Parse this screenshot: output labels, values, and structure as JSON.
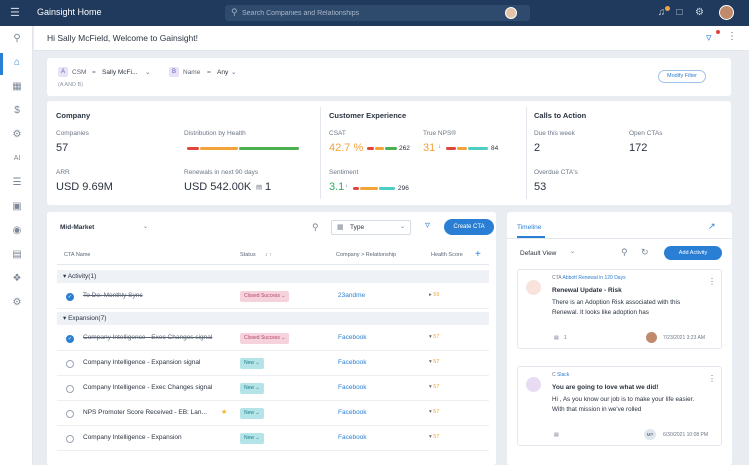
{
  "topbar": {
    "app_title": "Gainsight Home",
    "search_placeholder": "Search Companies and Relationships"
  },
  "welcome": {
    "text": "Hi Sally McField, Welcome to Gainsight!"
  },
  "filters": {
    "f1_letter": "A",
    "f1_field": "CSM",
    "f1_op": "=",
    "f1_value": "Sally McFi...",
    "f2_letter": "B",
    "f2_field": "Name",
    "f2_op": "=",
    "f2_value": "Any",
    "logic": "(A AND B)",
    "modify_label": "Modify Filter"
  },
  "company": {
    "title": "Company",
    "companies_label": "Companies",
    "companies_value": "57",
    "distribution_label": "Distribution by Health",
    "arr_label": "ARR",
    "arr_value": "USD 9.69M",
    "renewals_label": "Renewals in next 90 days",
    "renewals_value": "USD 542.00K",
    "renewals_count": "1"
  },
  "customer_experience": {
    "title": "Customer Experience",
    "csat_label": "CSAT",
    "csat_value": "42.7 %",
    "csat_count": "262",
    "nps_label": "True NPS®",
    "nps_value": "31",
    "nps_count": "84",
    "sentiment_label": "Sentiment",
    "sentiment_value": "3.1",
    "sentiment_count": "296"
  },
  "calls_to_action": {
    "title": "Calls to Action",
    "due_label": "Due this week",
    "due_value": "2",
    "open_label": "Open CTAs",
    "open_value": "172",
    "overdue_label": "Overdue CTA's",
    "overdue_value": "53"
  },
  "cta_list": {
    "segment": "Mid-Market",
    "type_label": "Type",
    "create_label": "Create CTA",
    "columns": [
      "CTA Name",
      "Status",
      "Company > Relationship",
      "Health Score"
    ],
    "groups": [
      {
        "label": "Activity(1)",
        "rows": [
          {
            "name": "To Do: Monthly Sync",
            "status": "Closed Success",
            "company": "23andme",
            "done": true
          }
        ]
      },
      {
        "label": "Expansion(7)",
        "rows": [
          {
            "name": "Company Intelligence - Exec Changes signal",
            "status": "Closed Success",
            "company": "Facebook",
            "done": true
          },
          {
            "name": "Company Intelligence - Expansion signal",
            "status": "New",
            "company": "Facebook",
            "done": false
          },
          {
            "name": "Company Intelligence - Exec Changes signal",
            "status": "New",
            "company": "Facebook",
            "done": false
          },
          {
            "name": "NPS Promoter Score Received - EB: Lan...",
            "status": "New",
            "company": "Facebook",
            "done": false
          },
          {
            "name": "Company Intelligence - Expansion",
            "status": "New",
            "company": "Facebook",
            "done": false
          }
        ]
      }
    ],
    "health_scores": [
      "59",
      "57",
      "57",
      "57",
      "57",
      "57"
    ]
  },
  "timeline": {
    "tab": "Timeline",
    "view": "Default View",
    "add_label": "Add Activity",
    "activities": [
      {
        "badge": "CTA",
        "source": "Abbott",
        "context": "Renewal in 120 Days",
        "title": "Renewal Update - Risk",
        "body": "There is an Adoption Risk associated with this Renewal. It looks like adoption has",
        "comments": "1",
        "date": "7/23/2021 3:23 AM"
      },
      {
        "badge": "C",
        "source": "Slack",
        "title": "You are going to love what we did!",
        "body": "Hi , As you know our job is to make your life easier. With that mission in we've rolled",
        "initials": "MP",
        "date": "6/30/2021 10:08 PM"
      }
    ]
  },
  "colors": {
    "topbar": "#1f3a5c",
    "accent": "#2a7fd4",
    "orange": "#f2a33a",
    "green": "#27ae60"
  }
}
